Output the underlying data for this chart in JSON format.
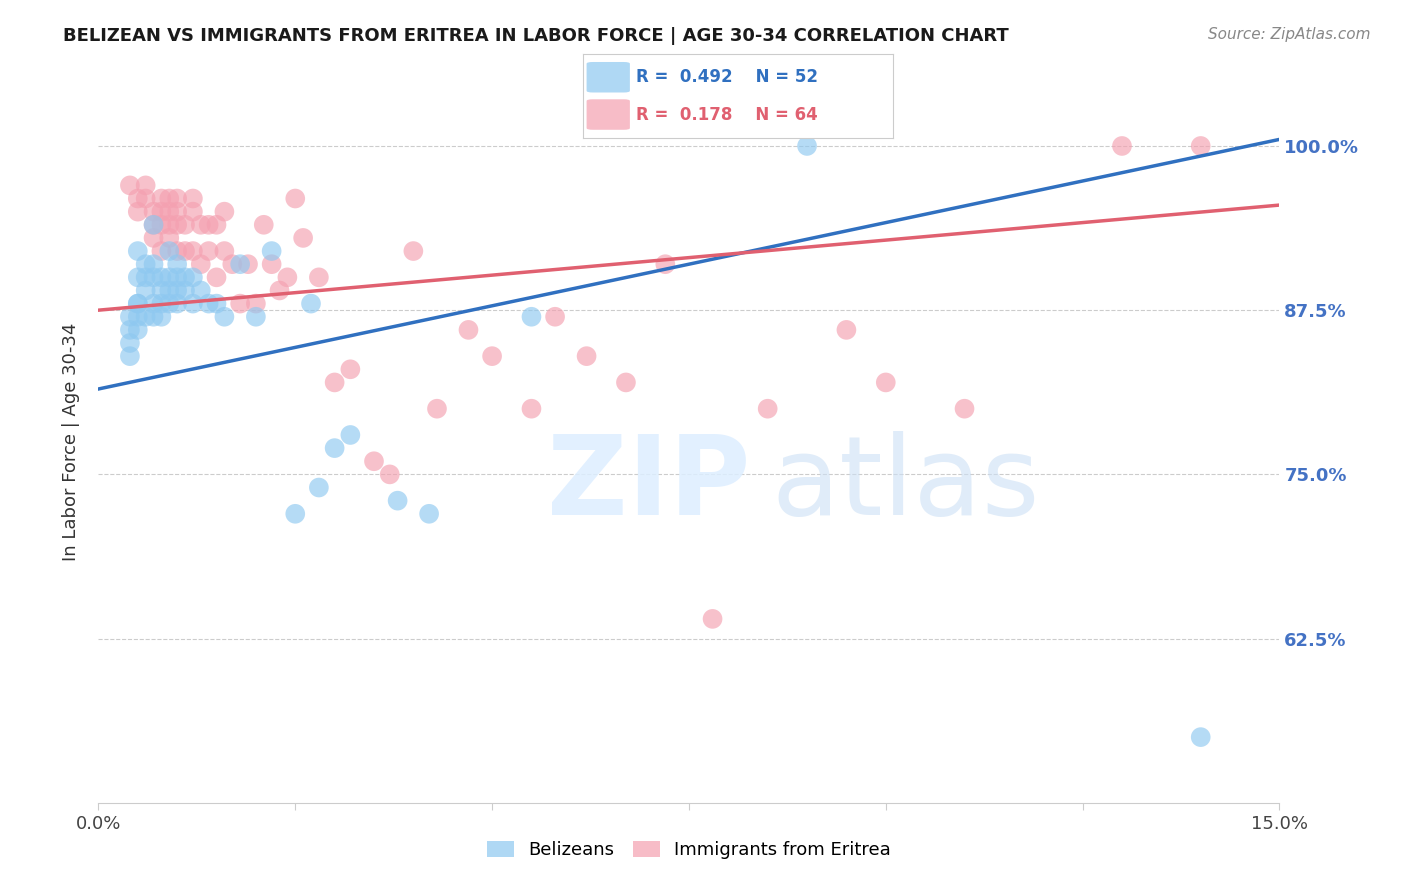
{
  "title": "BELIZEAN VS IMMIGRANTS FROM ERITREA IN LABOR FORCE | AGE 30-34 CORRELATION CHART",
  "source": "Source: ZipAtlas.com",
  "ylabel": "In Labor Force | Age 30-34",
  "x_min": 0.0,
  "x_max": 0.15,
  "y_min": 0.5,
  "y_max": 1.05,
  "x_ticks": [
    0.0,
    0.025,
    0.05,
    0.075,
    0.1,
    0.125,
    0.15
  ],
  "x_tick_labels": [
    "0.0%",
    "",
    "",
    "",
    "",
    "",
    "15.0%"
  ],
  "y_ticks": [
    0.625,
    0.75,
    0.875,
    1.0
  ],
  "y_tick_labels": [
    "62.5%",
    "75.0%",
    "87.5%",
    "100.0%"
  ],
  "belizean_color": "#8ec8f0",
  "eritrea_color": "#f4a0b0",
  "trend_blue": "#3070c0",
  "trend_pink": "#e06070",
  "legend_r_blue": "0.492",
  "legend_n_blue": "52",
  "legend_r_pink": "0.178",
  "legend_n_pink": "64",
  "blue_trend_x0": 0.0,
  "blue_trend_y0": 0.815,
  "blue_trend_x1": 0.15,
  "blue_trend_y1": 1.005,
  "pink_trend_x0": 0.0,
  "pink_trend_y0": 0.875,
  "pink_trend_x1": 0.15,
  "pink_trend_y1": 0.955,
  "belizean_x": [
    0.004,
    0.004,
    0.004,
    0.004,
    0.005,
    0.005,
    0.005,
    0.005,
    0.005,
    0.005,
    0.006,
    0.006,
    0.006,
    0.006,
    0.007,
    0.007,
    0.007,
    0.007,
    0.007,
    0.008,
    0.008,
    0.008,
    0.008,
    0.009,
    0.009,
    0.009,
    0.009,
    0.01,
    0.01,
    0.01,
    0.01,
    0.011,
    0.011,
    0.012,
    0.012,
    0.013,
    0.014,
    0.015,
    0.016,
    0.018,
    0.02,
    0.022,
    0.025,
    0.027,
    0.028,
    0.03,
    0.032,
    0.038,
    0.042,
    0.055,
    0.09,
    0.14
  ],
  "belizean_y": [
    0.87,
    0.86,
    0.85,
    0.84,
    0.92,
    0.9,
    0.88,
    0.88,
    0.87,
    0.86,
    0.91,
    0.9,
    0.89,
    0.87,
    0.94,
    0.91,
    0.9,
    0.88,
    0.87,
    0.9,
    0.89,
    0.88,
    0.87,
    0.92,
    0.9,
    0.89,
    0.88,
    0.91,
    0.9,
    0.89,
    0.88,
    0.9,
    0.89,
    0.9,
    0.88,
    0.89,
    0.88,
    0.88,
    0.87,
    0.91,
    0.87,
    0.92,
    0.72,
    0.88,
    0.74,
    0.77,
    0.78,
    0.73,
    0.72,
    0.87,
    1.0,
    0.55
  ],
  "eritrea_x": [
    0.004,
    0.005,
    0.005,
    0.006,
    0.006,
    0.007,
    0.007,
    0.007,
    0.008,
    0.008,
    0.008,
    0.008,
    0.009,
    0.009,
    0.009,
    0.009,
    0.01,
    0.01,
    0.01,
    0.01,
    0.011,
    0.011,
    0.012,
    0.012,
    0.012,
    0.013,
    0.013,
    0.014,
    0.014,
    0.015,
    0.015,
    0.016,
    0.016,
    0.017,
    0.018,
    0.019,
    0.02,
    0.021,
    0.022,
    0.023,
    0.024,
    0.025,
    0.026,
    0.028,
    0.03,
    0.032,
    0.035,
    0.037,
    0.04,
    0.043,
    0.047,
    0.05,
    0.055,
    0.058,
    0.062,
    0.067,
    0.072,
    0.078,
    0.085,
    0.095,
    0.1,
    0.11,
    0.13,
    0.14
  ],
  "eritrea_y": [
    0.97,
    0.96,
    0.95,
    0.97,
    0.96,
    0.95,
    0.94,
    0.93,
    0.96,
    0.95,
    0.94,
    0.92,
    0.96,
    0.95,
    0.94,
    0.93,
    0.96,
    0.95,
    0.94,
    0.92,
    0.94,
    0.92,
    0.96,
    0.95,
    0.92,
    0.94,
    0.91,
    0.94,
    0.92,
    0.94,
    0.9,
    0.95,
    0.92,
    0.91,
    0.88,
    0.91,
    0.88,
    0.94,
    0.91,
    0.89,
    0.9,
    0.96,
    0.93,
    0.9,
    0.82,
    0.83,
    0.76,
    0.75,
    0.92,
    0.8,
    0.86,
    0.84,
    0.8,
    0.87,
    0.84,
    0.82,
    0.91,
    0.64,
    0.8,
    0.86,
    0.82,
    0.8,
    1.0,
    1.0
  ]
}
